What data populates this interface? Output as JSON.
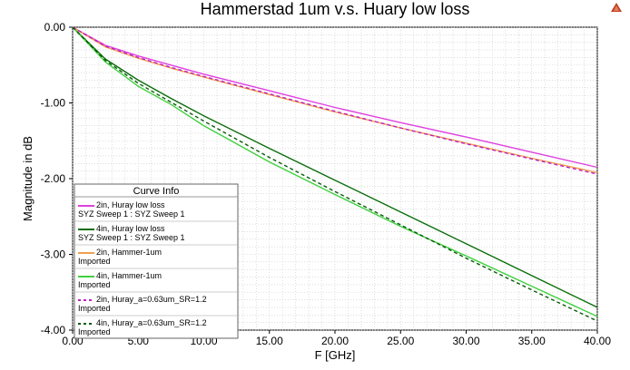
{
  "chart_data": {
    "type": "line",
    "title": "Hammerstad 1um v.s. Huary low loss",
    "xlabel": "F [GHz]",
    "ylabel": "Magnitude in dB",
    "xlim": [
      0,
      40
    ],
    "ylim": [
      -4,
      0
    ],
    "grid": true,
    "x_ticks": [
      "0.00",
      "5.00",
      "10.00",
      "15.00",
      "20.00",
      "25.00",
      "30.00",
      "35.00",
      "40.00"
    ],
    "y_ticks": [
      "0.00",
      "-1.00",
      "-2.00",
      "-3.00",
      "-4.00"
    ],
    "legend_title": "Curve Info",
    "legend_position": "bottom-left",
    "series": [
      {
        "name": "2in, Huray low loss",
        "subtitle": "SYZ Sweep 1 : SYZ Sweep 1",
        "color": "#e040e0",
        "dash": "solid",
        "x": [
          0,
          2.5,
          5,
          7.5,
          10,
          15,
          20,
          25,
          30,
          35,
          40
        ],
        "y": [
          0,
          -0.24,
          -0.38,
          -0.5,
          -0.62,
          -0.84,
          -1.06,
          -1.26,
          -1.45,
          -1.65,
          -1.85
        ]
      },
      {
        "name": "4in, Huray low loss",
        "subtitle": "SYZ Sweep 1 : SYZ Sweep 1",
        "color": "#0a6e0a",
        "dash": "solid",
        "x": [
          0,
          2.5,
          5,
          7.5,
          10,
          15,
          20,
          25,
          30,
          35,
          40
        ],
        "y": [
          0,
          -0.42,
          -0.7,
          -0.94,
          -1.17,
          -1.6,
          -2.02,
          -2.44,
          -2.86,
          -3.28,
          -3.7
        ]
      },
      {
        "name": "2in, Hammer-1um",
        "subtitle": "Imported",
        "color": "#f0a050",
        "dash": "solid",
        "x": [
          0,
          2.5,
          5,
          7.5,
          10,
          15,
          20,
          25,
          30,
          35,
          40
        ],
        "y": [
          0,
          -0.26,
          -0.41,
          -0.54,
          -0.66,
          -0.89,
          -1.12,
          -1.33,
          -1.53,
          -1.73,
          -1.92
        ]
      },
      {
        "name": "4in, Hammer-1um",
        "subtitle": "Imported",
        "color": "#40d040",
        "dash": "solid",
        "x": [
          0,
          2.5,
          5,
          7.5,
          10,
          15,
          20,
          25,
          30,
          35,
          40
        ],
        "y": [
          0,
          -0.46,
          -0.78,
          -1.02,
          -1.3,
          -1.78,
          -2.21,
          -2.63,
          -3.02,
          -3.42,
          -3.82
        ]
      },
      {
        "name": "2in, Huray_a=0.63um_SR=1.2",
        "subtitle": "Imported",
        "color": "#c020c0",
        "dash": "dashed",
        "x": [
          0,
          2.5,
          5,
          7.5,
          10,
          15,
          20,
          25,
          30,
          35,
          40
        ],
        "y": [
          0,
          -0.25,
          -0.4,
          -0.53,
          -0.65,
          -0.88,
          -1.11,
          -1.33,
          -1.54,
          -1.74,
          -1.94
        ]
      },
      {
        "name": "4in, Huray_a=0.63um_SR=1.2",
        "subtitle": "Imported",
        "color": "#0a5a0a",
        "dash": "dashed",
        "x": [
          0,
          2.5,
          5,
          7.5,
          10,
          15,
          20,
          25,
          30,
          35,
          40
        ],
        "y": [
          0,
          -0.44,
          -0.74,
          -0.99,
          -1.24,
          -1.72,
          -2.17,
          -2.61,
          -3.05,
          -3.47,
          -3.88
        ]
      }
    ]
  }
}
